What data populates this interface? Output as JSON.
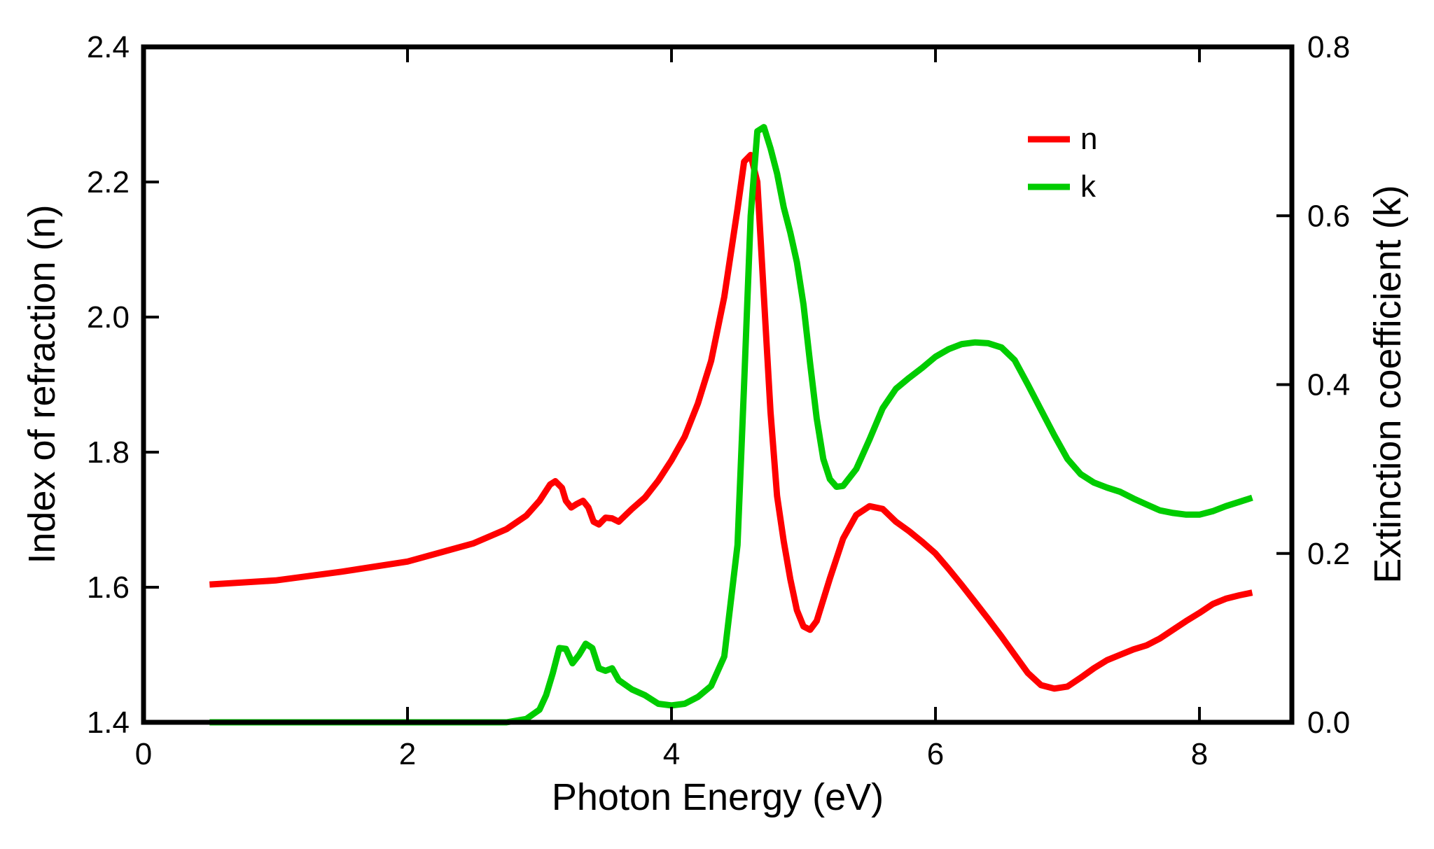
{
  "chart_data": {
    "type": "line",
    "xlabel": "Photon Energy (eV)",
    "ylabel": "Index of refraction (n)",
    "y2label": "Extinction coefficient (k)",
    "xlim": [
      0,
      8.7
    ],
    "ylim": [
      1.4,
      2.4
    ],
    "y2lim": [
      0,
      0.8
    ],
    "x_ticks": [
      0,
      2,
      4,
      6,
      8
    ],
    "y_ticks": [
      1.4,
      1.6,
      1.8,
      2.0,
      2.2,
      2.4
    ],
    "y2_ticks": [
      0.0,
      0.2,
      0.4,
      0.6,
      0.8
    ],
    "x_tick_labels": [
      "0",
      "2",
      "4",
      "6",
      "8"
    ],
    "y_tick_labels": [
      "1.4",
      "1.6",
      "1.8",
      "2.0",
      "2.2",
      "2.4"
    ],
    "y2_tick_labels": [
      "0.0",
      "0.2",
      "0.4",
      "0.6",
      "0.8"
    ],
    "legend_position": "top-right",
    "series": [
      {
        "name": "n",
        "axis": "left",
        "color": "#ff0000",
        "points": [
          [
            0.5,
            1.604
          ],
          [
            1.0,
            1.61
          ],
          [
            1.5,
            1.623
          ],
          [
            2.0,
            1.638
          ],
          [
            2.5,
            1.665
          ],
          [
            2.75,
            1.686
          ],
          [
            2.9,
            1.706
          ],
          [
            3.0,
            1.728
          ],
          [
            3.08,
            1.752
          ],
          [
            3.12,
            1.757
          ],
          [
            3.17,
            1.747
          ],
          [
            3.2,
            1.728
          ],
          [
            3.24,
            1.718
          ],
          [
            3.28,
            1.723
          ],
          [
            3.33,
            1.728
          ],
          [
            3.37,
            1.718
          ],
          [
            3.41,
            1.697
          ],
          [
            3.45,
            1.693
          ],
          [
            3.5,
            1.703
          ],
          [
            3.55,
            1.702
          ],
          [
            3.6,
            1.697
          ],
          [
            3.7,
            1.716
          ],
          [
            3.8,
            1.733
          ],
          [
            3.9,
            1.758
          ],
          [
            4.0,
            1.788
          ],
          [
            4.1,
            1.823
          ],
          [
            4.2,
            1.872
          ],
          [
            4.3,
            1.935
          ],
          [
            4.4,
            2.03
          ],
          [
            4.5,
            2.16
          ],
          [
            4.55,
            2.23
          ],
          [
            4.6,
            2.24
          ],
          [
            4.65,
            2.2
          ],
          [
            4.7,
            2.03
          ],
          [
            4.75,
            1.86
          ],
          [
            4.8,
            1.735
          ],
          [
            4.85,
            1.668
          ],
          [
            4.9,
            1.612
          ],
          [
            4.95,
            1.566
          ],
          [
            5.0,
            1.542
          ],
          [
            5.05,
            1.537
          ],
          [
            5.1,
            1.55
          ],
          [
            5.2,
            1.613
          ],
          [
            5.3,
            1.672
          ],
          [
            5.4,
            1.707
          ],
          [
            5.5,
            1.72
          ],
          [
            5.6,
            1.716
          ],
          [
            5.7,
            1.697
          ],
          [
            5.8,
            1.683
          ],
          [
            5.9,
            1.667
          ],
          [
            6.0,
            1.65
          ],
          [
            6.1,
            1.627
          ],
          [
            6.2,
            1.603
          ],
          [
            6.3,
            1.578
          ],
          [
            6.4,
            1.553
          ],
          [
            6.5,
            1.527
          ],
          [
            6.6,
            1.5
          ],
          [
            6.7,
            1.473
          ],
          [
            6.8,
            1.455
          ],
          [
            6.9,
            1.45
          ],
          [
            7.0,
            1.453
          ],
          [
            7.1,
            1.466
          ],
          [
            7.2,
            1.48
          ],
          [
            7.3,
            1.492
          ],
          [
            7.4,
            1.5
          ],
          [
            7.5,
            1.508
          ],
          [
            7.6,
            1.514
          ],
          [
            7.7,
            1.524
          ],
          [
            7.8,
            1.537
          ],
          [
            7.9,
            1.55
          ],
          [
            8.0,
            1.562
          ],
          [
            8.1,
            1.575
          ],
          [
            8.2,
            1.583
          ],
          [
            8.3,
            1.588
          ],
          [
            8.4,
            1.592
          ]
        ]
      },
      {
        "name": "k",
        "axis": "right",
        "color": "#00cc00",
        "points": [
          [
            0.5,
            0.0
          ],
          [
            1.0,
            0.0
          ],
          [
            1.5,
            0.0
          ],
          [
            2.0,
            0.0
          ],
          [
            2.5,
            0.0
          ],
          [
            2.75,
            0.0
          ],
          [
            2.9,
            0.004
          ],
          [
            3.0,
            0.015
          ],
          [
            3.05,
            0.032
          ],
          [
            3.1,
            0.058
          ],
          [
            3.15,
            0.088
          ],
          [
            3.2,
            0.087
          ],
          [
            3.25,
            0.07
          ],
          [
            3.3,
            0.08
          ],
          [
            3.35,
            0.093
          ],
          [
            3.4,
            0.088
          ],
          [
            3.45,
            0.064
          ],
          [
            3.5,
            0.061
          ],
          [
            3.55,
            0.064
          ],
          [
            3.6,
            0.05
          ],
          [
            3.7,
            0.039
          ],
          [
            3.8,
            0.032
          ],
          [
            3.9,
            0.022
          ],
          [
            4.0,
            0.02
          ],
          [
            4.1,
            0.022
          ],
          [
            4.2,
            0.03
          ],
          [
            4.3,
            0.043
          ],
          [
            4.4,
            0.078
          ],
          [
            4.5,
            0.21
          ],
          [
            4.55,
            0.4
          ],
          [
            4.6,
            0.6
          ],
          [
            4.65,
            0.7
          ],
          [
            4.7,
            0.705
          ],
          [
            4.75,
            0.68
          ],
          [
            4.8,
            0.65
          ],
          [
            4.85,
            0.61
          ],
          [
            4.9,
            0.58
          ],
          [
            4.95,
            0.545
          ],
          [
            5.0,
            0.495
          ],
          [
            5.05,
            0.425
          ],
          [
            5.1,
            0.36
          ],
          [
            5.15,
            0.312
          ],
          [
            5.2,
            0.288
          ],
          [
            5.25,
            0.279
          ],
          [
            5.3,
            0.28
          ],
          [
            5.4,
            0.3
          ],
          [
            5.5,
            0.335
          ],
          [
            5.6,
            0.372
          ],
          [
            5.7,
            0.395
          ],
          [
            5.8,
            0.408
          ],
          [
            5.9,
            0.42
          ],
          [
            6.0,
            0.433
          ],
          [
            6.1,
            0.442
          ],
          [
            6.2,
            0.448
          ],
          [
            6.3,
            0.45
          ],
          [
            6.4,
            0.449
          ],
          [
            6.5,
            0.444
          ],
          [
            6.6,
            0.429
          ],
          [
            6.7,
            0.4
          ],
          [
            6.8,
            0.37
          ],
          [
            6.9,
            0.34
          ],
          [
            7.0,
            0.312
          ],
          [
            7.1,
            0.294
          ],
          [
            7.2,
            0.284
          ],
          [
            7.3,
            0.278
          ],
          [
            7.4,
            0.273
          ],
          [
            7.5,
            0.265
          ],
          [
            7.6,
            0.258
          ],
          [
            7.7,
            0.251
          ],
          [
            7.8,
            0.248
          ],
          [
            7.9,
            0.246
          ],
          [
            8.0,
            0.246
          ],
          [
            8.1,
            0.25
          ],
          [
            8.2,
            0.256
          ],
          [
            8.3,
            0.261
          ],
          [
            8.4,
            0.266
          ]
        ]
      }
    ]
  }
}
